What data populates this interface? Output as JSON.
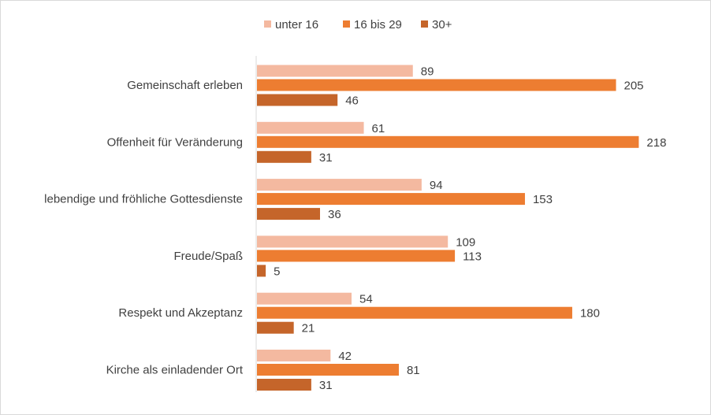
{
  "chart_data": {
    "type": "bar",
    "orientation": "horizontal",
    "title": "",
    "xlabel": "",
    "ylabel": "",
    "xlim": [
      0,
      220
    ],
    "grid": false,
    "legend_position": "top-center",
    "categories": [
      "Gemeinschaft erleben",
      "Offenheit für Veränderung",
      "lebendige und fröhliche Gottesdienste",
      "Freude/Spaß",
      "Respekt und Akzeptanz",
      "Kirche als einladender Ort"
    ],
    "series": [
      {
        "name": "unter 16",
        "color": "#F4B9A0",
        "values": [
          89,
          61,
          94,
          109,
          54,
          42
        ]
      },
      {
        "name": "16 bis 29",
        "color": "#ED7D31",
        "values": [
          205,
          218,
          153,
          113,
          180,
          81
        ]
      },
      {
        "name": "30+",
        "color": "#C5652A",
        "values": [
          46,
          31,
          36,
          5,
          21,
          31
        ]
      }
    ]
  }
}
